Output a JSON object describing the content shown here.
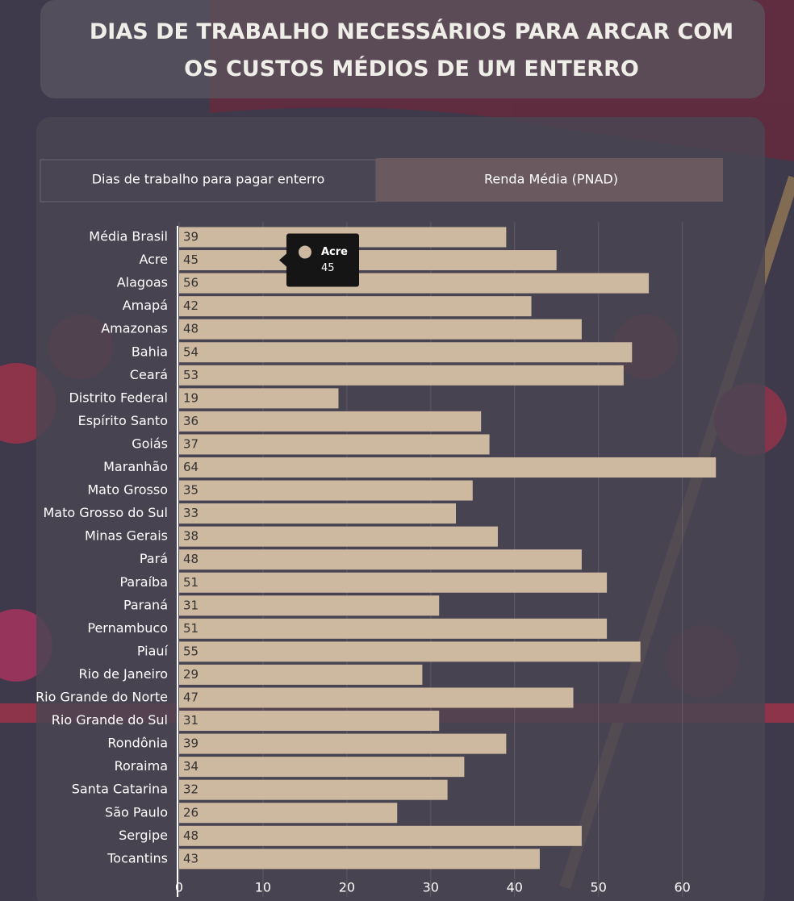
{
  "chart_data": {
    "type": "bar",
    "orientation": "horizontal",
    "title": "DIAS DE TRABALHO NECESSÁRIOS PARA ARCAR COM OS CUSTOS MÉDIOS DE UM ENTERRO",
    "tabs": [
      "Dias de trabalho para pagar enterro",
      "Renda Média (PNAD)"
    ],
    "categories": [
      "Média Brasil",
      "Acre",
      "Alagoas",
      "Amapá",
      "Amazonas",
      "Bahia",
      "Ceará",
      "Distrito Federal",
      "Espírito Santo",
      "Goiás",
      "Maranhão",
      "Mato Grosso",
      "Mato Grosso do Sul",
      "Minas Gerais",
      "Pará",
      "Paraíba",
      "Paraná",
      "Pernambuco",
      "Piauí",
      "Rio de Janeiro",
      "Rio Grande do Norte",
      "Rio Grande do Sul",
      "Rondônia",
      "Roraima",
      "Santa Catarina",
      "São Paulo",
      "Sergipe",
      "Tocantins"
    ],
    "values": [
      39,
      45,
      56,
      42,
      48,
      54,
      53,
      19,
      36,
      37,
      64,
      35,
      33,
      38,
      48,
      51,
      31,
      51,
      55,
      29,
      47,
      31,
      39,
      34,
      32,
      26,
      48,
      43
    ],
    "color": "#cdb8a0",
    "xlim": [
      0,
      66
    ],
    "xticks": [
      0,
      10,
      20,
      30,
      40,
      50,
      60
    ],
    "grid": true,
    "tooltip": {
      "label": "Acre",
      "value": 45
    }
  }
}
